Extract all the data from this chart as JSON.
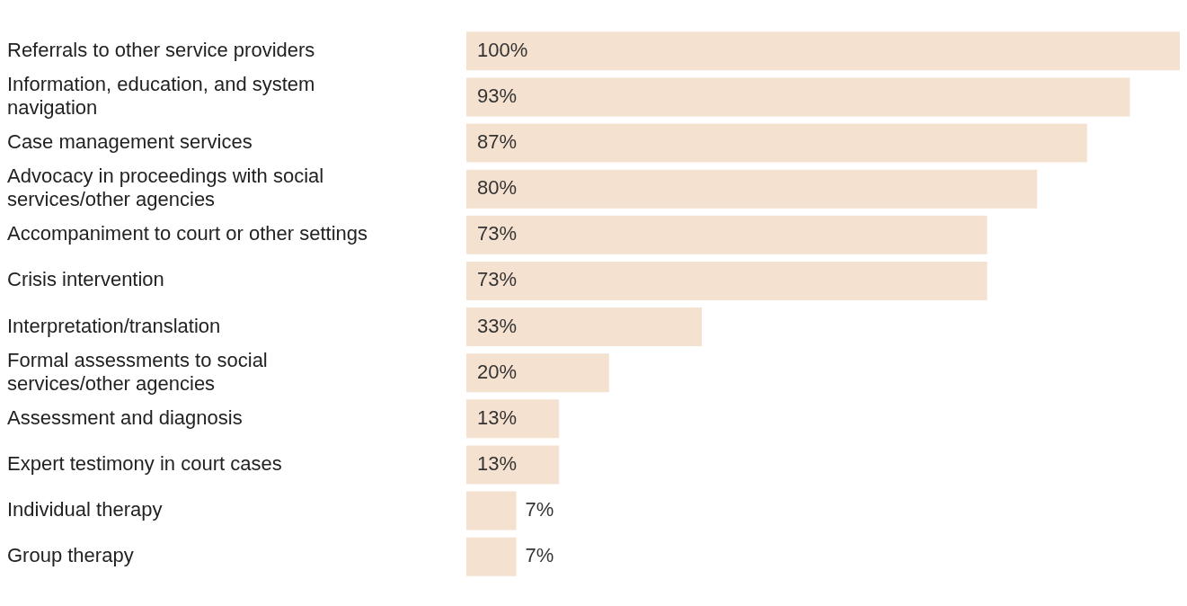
{
  "chart_data": {
    "type": "bar",
    "orientation": "horizontal",
    "categories": [
      "Referrals to other service providers",
      "Information, education, and system navigation",
      "Case management services",
      "Advocacy in proceedings with social services/other agencies",
      "Accompaniment to court or other settings",
      "Crisis intervention",
      "Interpretation/translation",
      "Formal assessments to social services/other agencies",
      "Assessment and diagnosis",
      "Expert testimony in court cases",
      "Individual therapy",
      "Group therapy"
    ],
    "values": [
      100,
      93,
      87,
      80,
      73,
      73,
      33,
      20,
      13,
      13,
      7,
      7
    ],
    "value_labels": [
      "100%",
      "93%",
      "87%",
      "80%",
      "73%",
      "73%",
      "33%",
      "20%",
      "13%",
      "13%",
      "7%",
      "7%"
    ],
    "color": "#f5e1d0",
    "xlim": [
      0,
      100
    ],
    "legend": false
  }
}
